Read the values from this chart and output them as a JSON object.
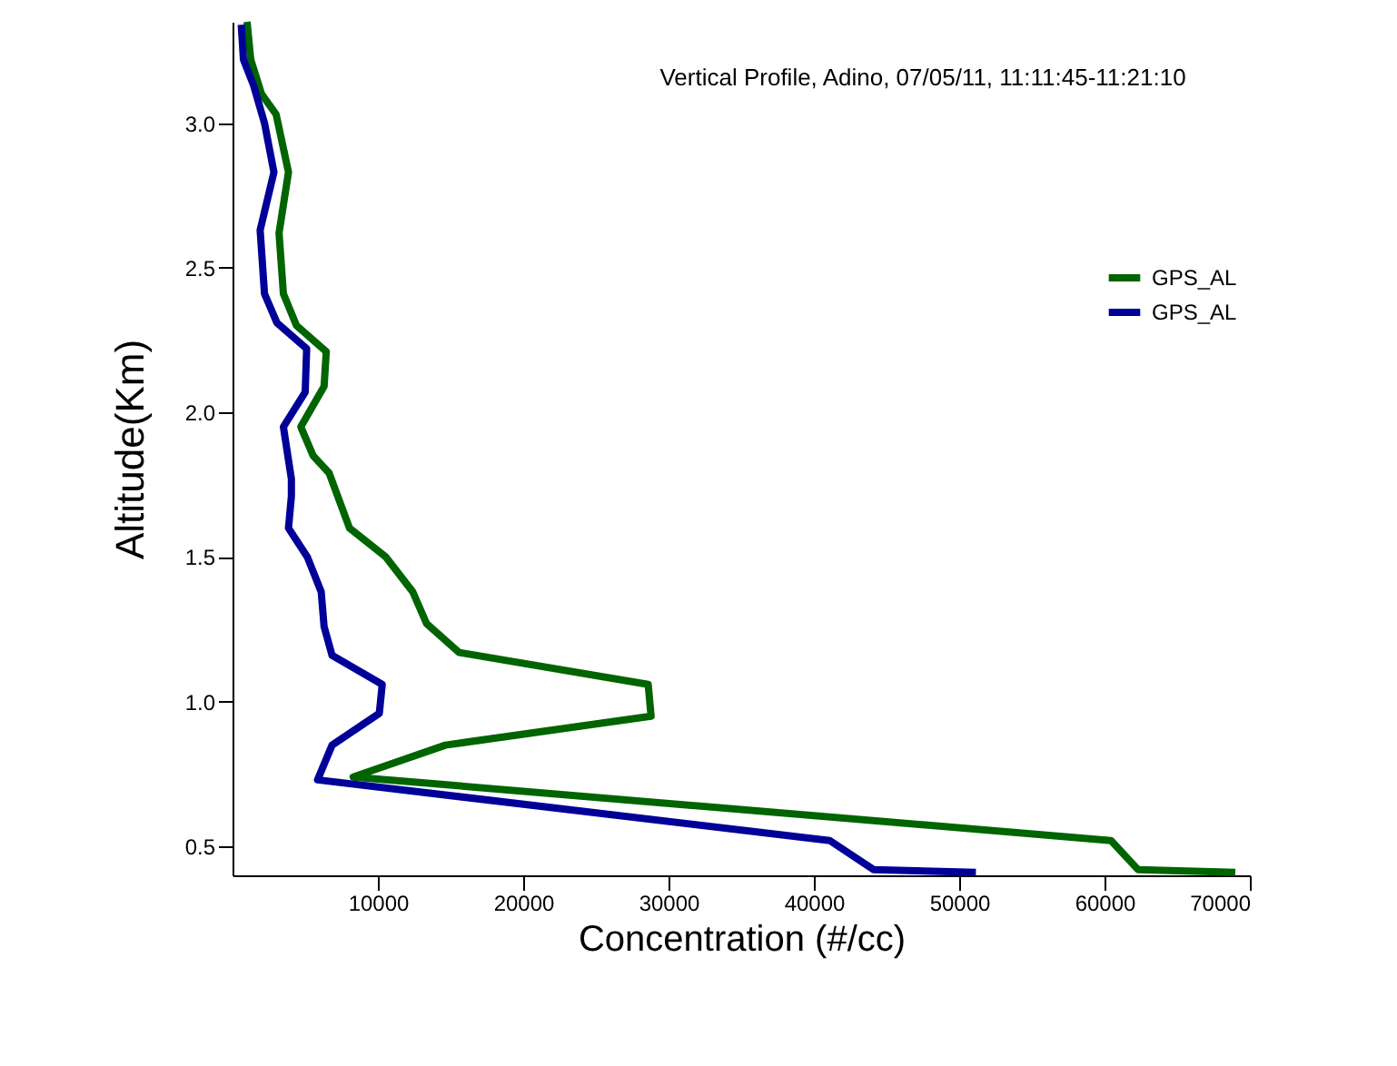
{
  "chart_data": {
    "type": "line",
    "title": "Vertical Profile, Adino, 07/05/11, 11:11:45-11:21:10",
    "xlabel": "Concentration (#/cc)",
    "ylabel": "Altitude(Km)",
    "xlim": [
      0,
      70000
    ],
    "xticks": [
      10000,
      20000,
      30000,
      40000,
      50000,
      60000,
      70000
    ],
    "ylim": [
      0.4,
      3.35
    ],
    "yticks": [
      {
        "value": 0.5,
        "label": "0.5"
      },
      {
        "value": 1,
        "label": "1.0"
      },
      {
        "value": 1.5,
        "label": "1.5"
      },
      {
        "value": 2,
        "label": "2.0"
      },
      {
        "value": 2.5,
        "label": "2.5"
      },
      {
        "value": 3,
        "label": "3.0"
      }
    ],
    "legend": "top right",
    "grid": false,
    "series": [
      {
        "name": "GPS_AL",
        "color": "#006400",
        "x": [
          1000,
          1250,
          2000,
          3000,
          3850,
          3200,
          3500,
          4400,
          6450,
          6300,
          4700,
          5550,
          6650,
          8050,
          10550,
          12400,
          13350,
          15600,
          28600,
          28800,
          14650,
          8300,
          60450,
          62300,
          69000
        ],
        "values": [
          3.35,
          3.22,
          3.1,
          3.03,
          2.83,
          2.62,
          2.41,
          2.3,
          2.21,
          2.09,
          1.95,
          1.85,
          1.79,
          1.6,
          1.5,
          1.38,
          1.27,
          1.17,
          1.06,
          0.95,
          0.85,
          0.74,
          0.52,
          0.42,
          0.41
        ]
      },
      {
        "name": "GPS_AL",
        "color": "#000099",
        "x": [
          600,
          750,
          1450,
          2200,
          2850,
          1900,
          2200,
          3050,
          5100,
          5000,
          3500,
          4050,
          4050,
          3850,
          5150,
          6100,
          6300,
          6850,
          10300,
          10100,
          6850,
          5850,
          41100,
          44100,
          51150
        ],
        "values": [
          3.34,
          3.22,
          3.13,
          3.0,
          2.83,
          2.63,
          2.41,
          2.31,
          2.22,
          2.07,
          1.95,
          1.77,
          1.71,
          1.6,
          1.5,
          1.38,
          1.26,
          1.16,
          1.06,
          0.96,
          0.85,
          0.73,
          0.52,
          0.42,
          0.41
        ]
      }
    ]
  }
}
